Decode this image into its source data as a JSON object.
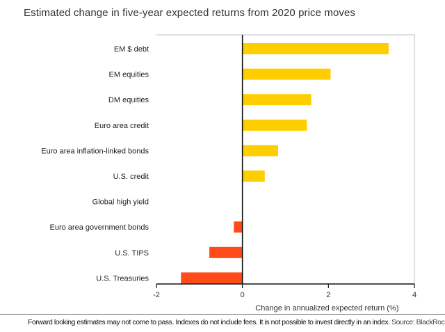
{
  "chart_data": {
    "type": "bar",
    "orientation": "horizontal",
    "title": "Estimated change in five-year expected returns from 2020 price moves",
    "xlabel": "Change in annualized expected return (%)",
    "ylabel": "",
    "xlim": [
      -2,
      4
    ],
    "xticks": [
      -2,
      0,
      2,
      4
    ],
    "tick_labels": [
      "-2",
      "0",
      "2",
      "4"
    ],
    "categories": [
      "EM $ debt",
      "EM equities",
      "DM equities",
      "Euro area credit",
      "Euro area inflation-linked bonds",
      "U.S. credit",
      "Global high yield",
      "Euro area government bonds",
      "U.S. TIPS",
      "U.S. Treasuries"
    ],
    "values": [
      3.4,
      2.05,
      1.6,
      1.5,
      0.83,
      0.52,
      0.0,
      -0.2,
      -0.77,
      -1.43
    ],
    "colors": {
      "positive": "#FFCE00",
      "negative": "#FF4A19",
      "axis": "#111111",
      "frame": "#bfbfbf"
    },
    "grid": false,
    "legend": "none"
  },
  "footer": {
    "note": "Forward looking estimates may not come to pass. Indexes do not include fees. It is not possible to invest directly in an index.",
    "source": "Source: BlackRock"
  }
}
